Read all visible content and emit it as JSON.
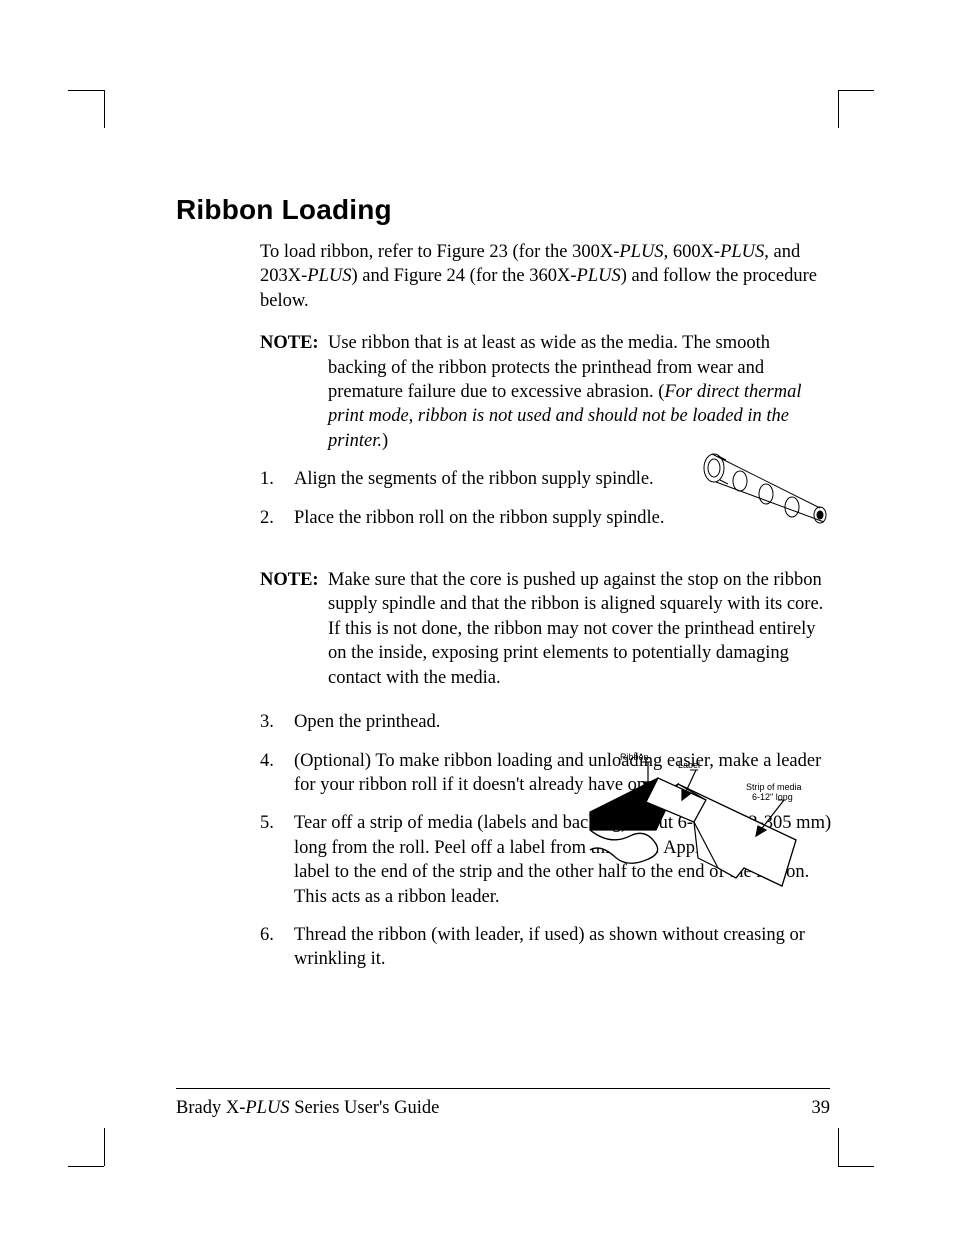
{
  "heading": "Ribbon Loading",
  "intro": {
    "pre1": "To load ribbon, refer to Figure 23 (for the 300X-",
    "m1": "PLUS",
    "mid1": ", 600X-",
    "m2": "PLUS",
    "mid2": ", and 203X-",
    "m3": "PLUS",
    "mid3": ") and Figure 24 (for the 360X-",
    "m4": "PLUS",
    "post": ") and follow the procedure below."
  },
  "note1": {
    "label": "NOTE:",
    "body_plain": "Use ribbon that is at least as wide as the media.  The smooth backing of the ribbon protects the printhead from wear and premature failure due to excessive abrasion.  (",
    "body_italic": "For direct thermal print mode, ribbon is not used and should not be loaded in the printer.",
    "body_close": ")"
  },
  "steps": {
    "s1_num": "1.",
    "s1": "Align the segments of the ribbon supply spindle.",
    "s2_num": "2.",
    "s2": "Place the ribbon roll on the ribbon supply spindle.",
    "s3_num": "3.",
    "s3": "Open the printhead.",
    "s4_num": "4.",
    "s4": "(Optional) To make ribbon loading and unloading easier, make a leader for your ribbon roll if it doesn't already have one.",
    "s5_num": "5.",
    "s5": "Tear off a strip of media (labels and backing) about 6-12\" (152-305 mm) long from the roll.  Peel off a label from this strip.  Apply half of this label to the end of the strip and the other half to the end of the  ribbon.  This acts as a ribbon leader.",
    "s6_num": "6.",
    "s6": "Thread the ribbon (with leader, if used) as shown without creasing or wrinkling it."
  },
  "note2": {
    "label": "NOTE:",
    "body": "Make sure that the core is pushed up against the stop on the ribbon supply spindle and that the ribbon is aligned squarely with its core. If this is not done, the ribbon may not cover the printhead entirely on the inside, exposing print elements to potentially damaging contact with the media."
  },
  "fig2_labels": {
    "ribbon": "Ribbon",
    "label": "Label",
    "strip1": "Strip of media",
    "strip2": "6-12\" long"
  },
  "footer": {
    "left_pre": "Brady X-",
    "left_italic": "PLUS",
    "left_post": " Series User's Guide",
    "page": "39"
  },
  "colors": {
    "text": "#000000",
    "background": "#ffffff"
  },
  "typography": {
    "heading_font": "Arial",
    "heading_size_pt": 21,
    "heading_weight": 800,
    "body_font": "Times New Roman",
    "body_size_pt": 14
  }
}
